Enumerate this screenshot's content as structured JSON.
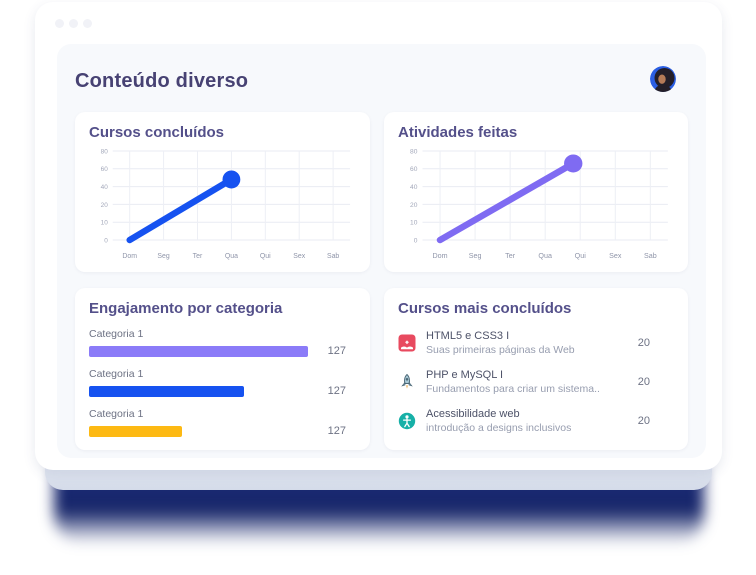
{
  "header": {
    "title": "Conteúdo diverso"
  },
  "chart_data": [
    {
      "type": "line",
      "title": "Cursos concluídos",
      "x_labels": [
        "Dom",
        "Seg",
        "Ter",
        "Qua",
        "Qui",
        "Sex",
        "Sab"
      ],
      "y_ticks": [
        80,
        60,
        40,
        20,
        10,
        0
      ],
      "grid": true,
      "legend": false,
      "color": "#1652f0",
      "series": [
        {
          "name": "Cursos concluídos",
          "points": [
            {
              "x": 0,
              "y": 0
            },
            {
              "x": 3,
              "y": 48
            }
          ]
        }
      ]
    },
    {
      "type": "line",
      "title": "Atividades feitas",
      "x_labels": [
        "Dom",
        "Seg",
        "Ter",
        "Qua",
        "Qui",
        "Sex",
        "Sab"
      ],
      "y_ticks": [
        80,
        60,
        40,
        20,
        10,
        0
      ],
      "grid": true,
      "legend": false,
      "color": "#7f6bf2",
      "series": [
        {
          "name": "Atividades feitas",
          "points": [
            {
              "x": 0,
              "y": 0
            },
            {
              "x": 3.8,
              "y": 66
            }
          ]
        }
      ]
    },
    {
      "type": "bar",
      "title": "Engajamento por categoria",
      "orientation": "horizontal",
      "categories": [
        "Categoria 1",
        "Categoria 1",
        "Categoria 1"
      ],
      "values": [
        127,
        127,
        127
      ],
      "bar_colors": [
        "#8b7bf8",
        "#1652f0",
        "#fdb913"
      ],
      "bar_width_pct": [
        82,
        58,
        35
      ]
    }
  ],
  "courses": {
    "title": "Cursos mais concluídos",
    "items": [
      {
        "icon": "html5-icon",
        "title": "HTML5 e CSS3 I",
        "subtitle": "Suas primeiras páginas da Web",
        "value": 20
      },
      {
        "icon": "php-mysql-icon",
        "title": "PHP e MySQL I",
        "subtitle": "Fundamentos para criar um sistema..",
        "value": 20
      },
      {
        "icon": "accessibility-icon",
        "title": "Acessibilidade web",
        "subtitle": "introdução a designs inclusivos",
        "value": 20
      }
    ]
  },
  "colors": {
    "accent_blue": "#1652f0",
    "accent_purple": "#7f6bf2",
    "accent_yellow": "#fdb913",
    "glow_navy": "#16236b"
  }
}
